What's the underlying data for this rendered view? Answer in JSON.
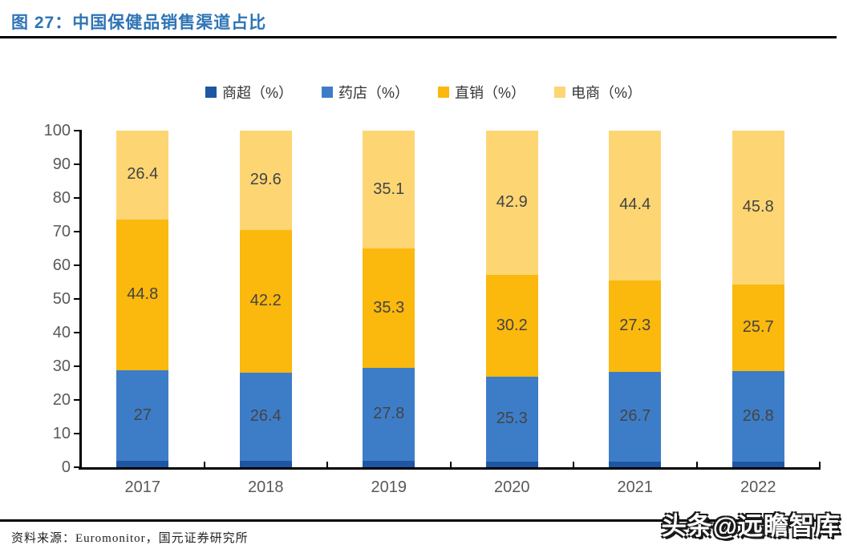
{
  "header": {
    "title": "图 27：中国保健品销售渠道占比"
  },
  "footer": {
    "source": "资料来源：Euromonitor，国元证券研究所",
    "watermark": "头条@远瞻智库"
  },
  "chart_data": {
    "type": "bar",
    "stacked": true,
    "title": "中国保健品销售渠道占比",
    "categories": [
      "2017",
      "2018",
      "2019",
      "2020",
      "2021",
      "2022"
    ],
    "series": [
      {
        "name": "商超（%）",
        "color": "#1E56A4",
        "labels_shown": false,
        "values": [
          1.8,
          1.8,
          1.8,
          1.6,
          1.6,
          1.7
        ]
      },
      {
        "name": "药店（%）",
        "color": "#3D7DC8",
        "labels_shown": true,
        "values": [
          27,
          26.4,
          27.8,
          25.3,
          26.7,
          26.8
        ]
      },
      {
        "name": "直销（%）",
        "color": "#FBB80D",
        "labels_shown": true,
        "values": [
          44.8,
          42.2,
          35.3,
          30.2,
          27.3,
          25.7
        ]
      },
      {
        "name": "电商（%）",
        "color": "#FDD673",
        "labels_shown": true,
        "values": [
          26.4,
          29.6,
          35.1,
          42.9,
          44.4,
          45.8
        ]
      }
    ],
    "ylim": [
      0,
      100
    ],
    "ytick_step": 10,
    "legend_position": "top",
    "grid": false,
    "axis_color": "#000000",
    "tick_label_color": "#595959",
    "data_label_color": "#444444"
  }
}
